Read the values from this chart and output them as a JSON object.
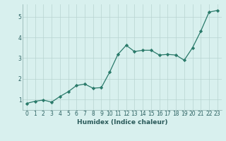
{
  "x": [
    0,
    1,
    2,
    3,
    4,
    5,
    6,
    7,
    8,
    9,
    10,
    11,
    12,
    13,
    14,
    15,
    16,
    17,
    18,
    19,
    20,
    21,
    22,
    23
  ],
  "y": [
    0.82,
    0.92,
    0.98,
    0.88,
    1.15,
    1.38,
    1.68,
    1.75,
    1.55,
    1.58,
    2.32,
    3.18,
    3.62,
    3.32,
    3.38,
    3.38,
    3.15,
    3.18,
    3.15,
    2.9,
    3.5,
    4.3,
    5.22,
    5.3
  ],
  "line_color": "#2a7a6a",
  "marker": "D",
  "marker_size": 2.2,
  "bg_color": "#d8f0ee",
  "grid_color": "#b8d4d0",
  "xlabel": "Humidex (Indice chaleur)",
  "xlim": [
    -0.5,
    23.5
  ],
  "ylim": [
    0.5,
    5.6
  ],
  "yticks": [
    1,
    2,
    3,
    4,
    5
  ],
  "xticks": [
    0,
    1,
    2,
    3,
    4,
    5,
    6,
    7,
    8,
    9,
    10,
    11,
    12,
    13,
    14,
    15,
    16,
    17,
    18,
    19,
    20,
    21,
    22,
    23
  ],
  "xtick_labels": [
    "0",
    "1",
    "2",
    "3",
    "4",
    "5",
    "6",
    "7",
    "8",
    "9",
    "10",
    "11",
    "12",
    "13",
    "14",
    "15",
    "16",
    "17",
    "18",
    "19",
    "20",
    "21",
    "22",
    "23"
  ],
  "xlabel_fontsize": 6.5,
  "tick_fontsize": 5.5,
  "line_width": 0.9
}
